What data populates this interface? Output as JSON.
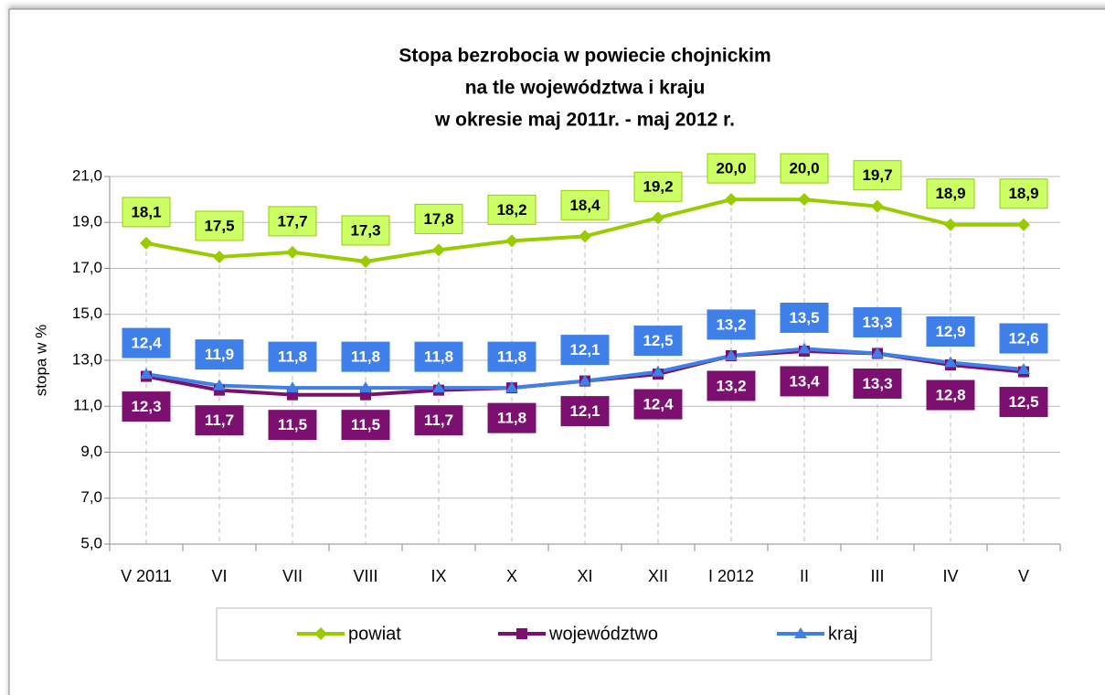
{
  "chart_data": {
    "type": "line",
    "title": [
      "Stopa bezrobocia w powiecie chojnickim",
      "na tle województwa i kraju",
      "w okresie maj 2011r. -  maj 2012 r."
    ],
    "y_label": "stopa w %",
    "categories": [
      "V 2011",
      "VI",
      "VII",
      "VIII",
      "IX",
      "X",
      "XI",
      "XII",
      "I 2012",
      "II",
      "III",
      "IV",
      "V"
    ],
    "ylim": [
      5,
      21
    ],
    "yticks": [
      {
        "value": 5,
        "label": "5,0"
      },
      {
        "value": 7,
        "label": "7,0"
      },
      {
        "value": 9,
        "label": "9,0"
      },
      {
        "value": 11,
        "label": "11,0"
      },
      {
        "value": 13,
        "label": "13,0"
      },
      {
        "value": 15,
        "label": "15,0"
      },
      {
        "value": 17,
        "label": "17,0"
      },
      {
        "value": 19,
        "label": "19,0"
      },
      {
        "value": 21,
        "label": "21,0"
      }
    ],
    "grid": true,
    "legend": "bottom",
    "series": [
      {
        "name": "powiat",
        "color": "#99cc00",
        "marker": "diamond",
        "label_position": "above",
        "label_fill": "#ccff66",
        "label_text_color": "#000000",
        "values": [
          18.1,
          17.5,
          17.7,
          17.3,
          17.8,
          18.2,
          18.4,
          19.2,
          20.0,
          20.0,
          19.7,
          18.9,
          18.9
        ],
        "value_labels": [
          "18,1",
          "17,5",
          "17,7",
          "17,3",
          "17,8",
          "18,2",
          "18,4",
          "19,2",
          "20,0",
          "20,0",
          "19,7",
          "18,9",
          "18,9"
        ]
      },
      {
        "name": "województwo",
        "color": "#7b1070",
        "marker": "square",
        "label_position": "below",
        "label_fill": "#7b1070",
        "label_text_color": "#ffffff",
        "values": [
          12.3,
          11.7,
          11.5,
          11.5,
          11.7,
          11.8,
          12.1,
          12.4,
          13.2,
          13.4,
          13.3,
          12.8,
          12.5
        ],
        "value_labels": [
          "12,3",
          "11,7",
          "11,5",
          "11,5",
          "11,7",
          "11,8",
          "12,1",
          "12,4",
          "13,2",
          "13,4",
          "13,3",
          "12,8",
          "12,5"
        ]
      },
      {
        "name": "kraj",
        "color": "#3f7fe8",
        "marker": "triangle",
        "label_position": "above",
        "label_fill": "#3f7fe8",
        "label_text_color": "#ffffff",
        "values": [
          12.4,
          11.9,
          11.8,
          11.8,
          11.8,
          11.8,
          12.1,
          12.5,
          13.2,
          13.5,
          13.3,
          12.9,
          12.6
        ],
        "value_labels": [
          "12,4",
          "11,9",
          "11,8",
          "11,8",
          "11,8",
          "11,8",
          "12,1",
          "12,5",
          "13,2",
          "13,5",
          "13,3",
          "12,9",
          "12,6"
        ]
      }
    ]
  }
}
